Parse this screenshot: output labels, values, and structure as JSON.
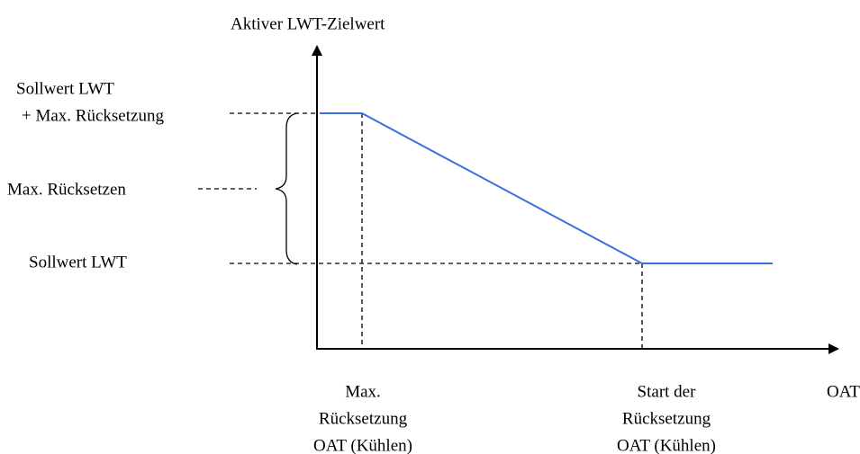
{
  "y_axis": {
    "label": "Aktiver LWT-Zielwert"
  },
  "x_axis": {
    "label": "OAT"
  },
  "y_levels": {
    "upper": {
      "lines": [
        "Sollwert LWT",
        "+ Max. Rücksetzung"
      ]
    },
    "range": {
      "label": "Max. Rücksetzen"
    },
    "lower": {
      "label": "Sollwert LWT"
    }
  },
  "x_points": [
    {
      "lines": [
        "Max.",
        "Rücksetzung",
        "OAT (Kühlen)"
      ]
    },
    {
      "lines": [
        "Start der",
        "Rücksetzung",
        "OAT (Kühlen)"
      ]
    }
  ]
}
